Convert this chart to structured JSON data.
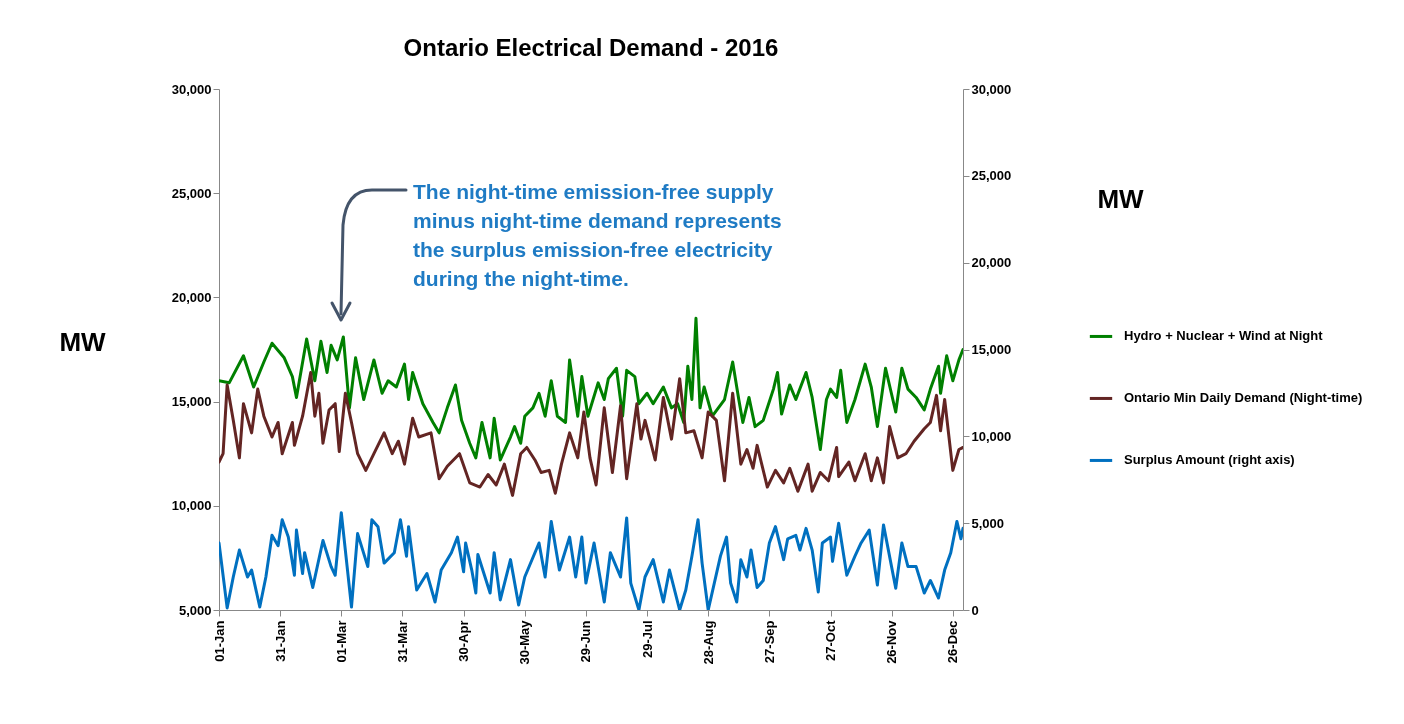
{
  "chart_data": {
    "type": "line",
    "title": "Ontario Electrical Demand - 2016",
    "ylabel": "MW",
    "y2label": "MW",
    "xlim": [
      "2016-01-01",
      "2016-12-31"
    ],
    "xticks": [
      {
        "value": "2016-01-01",
        "label": "01-Jan"
      },
      {
        "value": "2016-01-31",
        "label": "31-Jan"
      },
      {
        "value": "2016-03-01",
        "label": "01-Mar"
      },
      {
        "value": "2016-03-31",
        "label": "31-Mar"
      },
      {
        "value": "2016-04-30",
        "label": "30-Apr"
      },
      {
        "value": "2016-05-30",
        "label": "30-May"
      },
      {
        "value": "2016-06-29",
        "label": "29-Jun"
      },
      {
        "value": "2016-07-29",
        "label": "29-Jul"
      },
      {
        "value": "2016-08-28",
        "label": "28-Aug"
      },
      {
        "value": "2016-09-27",
        "label": "27-Sep"
      },
      {
        "value": "2016-10-27",
        "label": "27-Oct"
      },
      {
        "value": "2016-11-26",
        "label": "26-Nov"
      },
      {
        "value": "2016-12-26",
        "label": "26-Dec"
      }
    ],
    "ylim": [
      5000,
      30000
    ],
    "yticks": [
      {
        "value": 5000,
        "label": "5,000"
      },
      {
        "value": 10000,
        "label": "10,000"
      },
      {
        "value": 15000,
        "label": "15,000"
      },
      {
        "value": 20000,
        "label": "20,000"
      },
      {
        "value": 25000,
        "label": "25,000"
      },
      {
        "value": 30000,
        "label": "30,000"
      }
    ],
    "y2lim": [
      0,
      30000
    ],
    "y2ticks": [
      0,
      {
        "value": 5000,
        "label": "5,000"
      },
      {
        "value": 10000,
        "label": "10,000"
      },
      {
        "value": 15000,
        "label": "15,000"
      },
      {
        "value": 20000,
        "label": "20,000"
      },
      {
        "value": 25000,
        "label": "25,000"
      },
      {
        "value": 30000,
        "label": "30,000"
      }
    ],
    "grid": false,
    "legend": "right",
    "marker": "none",
    "line_style": "solid",
    "annotations": [
      "The night-time emission-free supply\nminus night-time demand represents\nthe surplus emission-free electricity\nduring the night-time."
    ],
    "series": [
      {
        "name": "Hydro + Nuclear + Wind at Night",
        "color": "#008000",
        "x": [
          "2016-01-01",
          "2016-01-06",
          "2016-01-13",
          "2016-01-18",
          "2016-01-23",
          "2016-01-27",
          "2016-02-02",
          "2016-02-06",
          "2016-02-08",
          "2016-02-13",
          "2016-02-17",
          "2016-02-20",
          "2016-02-23",
          "2016-02-25",
          "2016-02-28",
          "2016-03-02",
          "2016-03-05",
          "2016-03-08",
          "2016-03-12",
          "2016-03-17",
          "2016-03-21",
          "2016-03-24",
          "2016-03-28",
          "2016-04-01",
          "2016-04-03",
          "2016-04-05",
          "2016-04-10",
          "2016-04-15",
          "2016-04-18",
          "2016-04-22",
          "2016-04-26",
          "2016-04-29",
          "2016-05-03",
          "2016-05-06",
          "2016-05-09",
          "2016-05-13",
          "2016-05-15",
          "2016-05-18",
          "2016-05-23",
          "2016-05-25",
          "2016-05-28",
          "2016-05-30",
          "2016-06-03",
          "2016-06-06",
          "2016-06-09",
          "2016-06-12",
          "2016-06-15",
          "2016-06-19",
          "2016-06-21",
          "2016-06-25",
          "2016-06-27",
          "2016-06-30",
          "2016-07-05",
          "2016-07-08",
          "2016-07-10",
          "2016-07-14",
          "2016-07-17",
          "2016-07-19",
          "2016-07-23",
          "2016-07-25",
          "2016-07-29",
          "2016-08-01",
          "2016-08-06",
          "2016-08-10",
          "2016-08-13",
          "2016-08-16",
          "2016-08-18",
          "2016-08-20",
          "2016-08-22",
          "2016-08-24",
          "2016-08-26",
          "2016-08-30",
          "2016-09-05",
          "2016-09-09",
          "2016-09-12",
          "2016-09-14",
          "2016-09-17",
          "2016-09-20",
          "2016-09-24",
          "2016-09-29",
          "2016-10-01",
          "2016-10-03",
          "2016-10-07",
          "2016-10-10",
          "2016-10-15",
          "2016-10-18",
          "2016-10-22",
          "2016-10-25",
          "2016-10-27",
          "2016-10-30",
          "2016-11-01",
          "2016-11-04",
          "2016-11-08",
          "2016-11-13",
          "2016-11-16",
          "2016-11-19",
          "2016-11-23",
          "2016-11-28",
          "2016-12-01",
          "2016-12-04",
          "2016-12-08",
          "2016-12-12",
          "2016-12-15",
          "2016-12-19",
          "2016-12-20",
          "2016-12-23",
          "2016-12-26",
          "2016-12-29",
          "2016-12-31"
        ],
        "values": [
          16000,
          15900,
          17200,
          15700,
          16900,
          17800,
          17100,
          16200,
          15200,
          18000,
          16000,
          17900,
          16400,
          17700,
          17000,
          18100,
          14700,
          17100,
          15100,
          17000,
          15400,
          16000,
          15700,
          16800,
          15100,
          16400,
          14900,
          14000,
          13500,
          14700,
          15800,
          14100,
          13000,
          12300,
          14000,
          12300,
          14200,
          12200,
          13300,
          13800,
          13000,
          14300,
          14700,
          15400,
          14300,
          16000,
          14300,
          14000,
          17000,
          14300,
          16200,
          14300,
          15900,
          15100,
          16100,
          16600,
          14300,
          16500,
          16200,
          14900,
          15400,
          14900,
          15700,
          14700,
          14900,
          14000,
          16700,
          15100,
          19000,
          14700,
          15700,
          14300,
          15100,
          16900,
          15100,
          14000,
          15200,
          13800,
          14100,
          15600,
          16400,
          14400,
          15800,
          15100,
          16400,
          15200,
          12700,
          15100,
          15600,
          15200,
          16500,
          14000,
          15100,
          16800,
          15700,
          13800,
          16600,
          14500,
          16600,
          15600,
          15200,
          14600,
          15600,
          16700,
          15400,
          17200,
          16000,
          17000,
          17500
        ]
      },
      {
        "name": "Ontario Min Daily Demand (Night-time)",
        "color": "#632523",
        "x": [
          "2016-01-01",
          "2016-01-03",
          "2016-01-05",
          "2016-01-08",
          "2016-01-11",
          "2016-01-13",
          "2016-01-17",
          "2016-01-20",
          "2016-01-23",
          "2016-01-27",
          "2016-01-30",
          "2016-02-01",
          "2016-02-06",
          "2016-02-07",
          "2016-02-11",
          "2016-02-15",
          "2016-02-17",
          "2016-02-19",
          "2016-02-21",
          "2016-02-24",
          "2016-02-27",
          "2016-02-29",
          "2016-03-03",
          "2016-03-06",
          "2016-03-09",
          "2016-03-13",
          "2016-03-17",
          "2016-03-22",
          "2016-03-26",
          "2016-03-29",
          "2016-04-01",
          "2016-04-05",
          "2016-04-08",
          "2016-04-14",
          "2016-04-18",
          "2016-04-22",
          "2016-04-28",
          "2016-05-03",
          "2016-05-08",
          "2016-05-12",
          "2016-05-16",
          "2016-05-20",
          "2016-05-24",
          "2016-05-28",
          "2016-05-31",
          "2016-06-04",
          "2016-06-07",
          "2016-06-11",
          "2016-06-14",
          "2016-06-17",
          "2016-06-21",
          "2016-06-25",
          "2016-06-28",
          "2016-07-01",
          "2016-07-04",
          "2016-07-08",
          "2016-07-12",
          "2016-07-16",
          "2016-07-19",
          "2016-07-24",
          "2016-07-26",
          "2016-07-28",
          "2016-08-02",
          "2016-08-06",
          "2016-08-10",
          "2016-08-14",
          "2016-08-17",
          "2016-08-21",
          "2016-08-25",
          "2016-08-28",
          "2016-09-01",
          "2016-09-05",
          "2016-09-09",
          "2016-09-13",
          "2016-09-16",
          "2016-09-19",
          "2016-09-21",
          "2016-09-26",
          "2016-09-30",
          "2016-10-04",
          "2016-10-07",
          "2016-10-11",
          "2016-10-16",
          "2016-10-18",
          "2016-10-22",
          "2016-10-26",
          "2016-10-30",
          "2016-10-31",
          "2016-11-05",
          "2016-11-08",
          "2016-11-13",
          "2016-11-16",
          "2016-11-19",
          "2016-11-22",
          "2016-11-25",
          "2016-11-29",
          "2016-12-03",
          "2016-12-07",
          "2016-12-12",
          "2016-12-15",
          "2016-12-18",
          "2016-12-20",
          "2016-12-22",
          "2016-12-26",
          "2016-12-29",
          "2016-12-31"
        ],
        "values": [
          12100,
          12500,
          15800,
          14100,
          12300,
          14900,
          13500,
          15600,
          14300,
          13300,
          14000,
          12500,
          14000,
          12900,
          14300,
          16400,
          14300,
          15400,
          13000,
          14600,
          14900,
          12600,
          15400,
          14000,
          12500,
          11700,
          12500,
          13500,
          12500,
          13100,
          12000,
          14200,
          13300,
          13500,
          11300,
          11900,
          12500,
          11100,
          10900,
          11500,
          11000,
          12000,
          10500,
          12500,
          12800,
          12200,
          11600,
          11700,
          10600,
          12000,
          13500,
          12300,
          14500,
          12300,
          11000,
          14700,
          11600,
          14800,
          11300,
          14900,
          13200,
          14100,
          12200,
          15200,
          13200,
          16100,
          13500,
          13600,
          12300,
          14500,
          14100,
          11200,
          15400,
          12000,
          12700,
          11800,
          12900,
          10900,
          11700,
          11100,
          11800,
          10700,
          12000,
          10700,
          11600,
          11200,
          12800,
          11400,
          12100,
          11200,
          12500,
          11200,
          12300,
          11100,
          13800,
          12300,
          12500,
          13100,
          13700,
          14000,
          15300,
          13600,
          15100,
          11700,
          12700,
          12800
        ]
      },
      {
        "name": "Surplus Amount (right axis)",
        "color": "#0070c0",
        "axis": "y2",
        "x": [
          "2016-01-01",
          "2016-01-05",
          "2016-01-08",
          "2016-01-11",
          "2016-01-15",
          "2016-01-17",
          "2016-01-21",
          "2016-01-24",
          "2016-01-27",
          "2016-01-30",
          "2016-02-01",
          "2016-02-04",
          "2016-02-07",
          "2016-02-08",
          "2016-02-11",
          "2016-02-12",
          "2016-02-16",
          "2016-02-21",
          "2016-02-25",
          "2016-02-27",
          "2016-03-01",
          "2016-03-06",
          "2016-03-09",
          "2016-03-14",
          "2016-03-16",
          "2016-03-19",
          "2016-03-22",
          "2016-03-27",
          "2016-03-30",
          "2016-04-02",
          "2016-04-03",
          "2016-04-07",
          "2016-04-12",
          "2016-04-16",
          "2016-04-19",
          "2016-04-24",
          "2016-04-27",
          "2016-04-30",
          "2016-05-01",
          "2016-05-04",
          "2016-05-06",
          "2016-05-07",
          "2016-05-13",
          "2016-05-15",
          "2016-05-18",
          "2016-05-23",
          "2016-05-27",
          "2016-05-30",
          "2016-06-06",
          "2016-06-09",
          "2016-06-12",
          "2016-06-16",
          "2016-06-21",
          "2016-06-24",
          "2016-06-27",
          "2016-06-29",
          "2016-07-03",
          "2016-07-08",
          "2016-07-11",
          "2016-07-16",
          "2016-07-19",
          "2016-07-21",
          "2016-07-25",
          "2016-07-28",
          "2016-08-01",
          "2016-08-06",
          "2016-08-09",
          "2016-08-14",
          "2016-08-17",
          "2016-08-20",
          "2016-08-23",
          "2016-08-25",
          "2016-08-28",
          "2016-09-03",
          "2016-09-06",
          "2016-09-08",
          "2016-09-11",
          "2016-09-13",
          "2016-09-16",
          "2016-09-18",
          "2016-09-21",
          "2016-09-24",
          "2016-09-27",
          "2016-09-30",
          "2016-10-04",
          "2016-10-06",
          "2016-10-10",
          "2016-10-12",
          "2016-10-15",
          "2016-10-18",
          "2016-10-21",
          "2016-10-23",
          "2016-10-27",
          "2016-10-28",
          "2016-10-31",
          "2016-11-04",
          "2016-11-08",
          "2016-11-11",
          "2016-11-15",
          "2016-11-19",
          "2016-11-22",
          "2016-11-28",
          "2016-12-01",
          "2016-12-04",
          "2016-12-08",
          "2016-12-12",
          "2016-12-15",
          "2016-12-19",
          "2016-12-22",
          "2016-12-25",
          "2016-12-28",
          "2016-12-30",
          "2016-12-31"
        ],
        "values": [
          3860,
          120,
          1900,
          3450,
          1900,
          2300,
          170,
          1900,
          4300,
          3700,
          5200,
          4200,
          2000,
          4600,
          2100,
          3300,
          1300,
          4000,
          2500,
          2000,
          5600,
          170,
          4400,
          2500,
          5200,
          4800,
          2700,
          3300,
          5200,
          3100,
          4800,
          1150,
          2100,
          460,
          2300,
          3300,
          4200,
          2200,
          3860,
          2300,
          980,
          3200,
          980,
          3300,
          580,
          2900,
          290,
          1900,
          3860,
          1900,
          5100,
          2300,
          4200,
          1900,
          4200,
          1550,
          3860,
          460,
          3300,
          1900,
          5300,
          1550,
          0,
          1900,
          2900,
          460,
          2300,
          0,
          1150,
          3100,
          5200,
          2700,
          0,
          3100,
          4200,
          1550,
          460,
          2900,
          1900,
          3450,
          1300,
          1700,
          3860,
          4800,
          2900,
          4100,
          4300,
          3450,
          4700,
          3450,
          1040,
          3860,
          4200,
          2800,
          5000,
          2000,
          3100,
          3860,
          4600,
          1440,
          4900,
          1250,
          3860,
          2500,
          2500,
          980,
          1700,
          690,
          2300,
          3300,
          5100,
          4100,
          4700
        ]
      }
    ]
  }
}
